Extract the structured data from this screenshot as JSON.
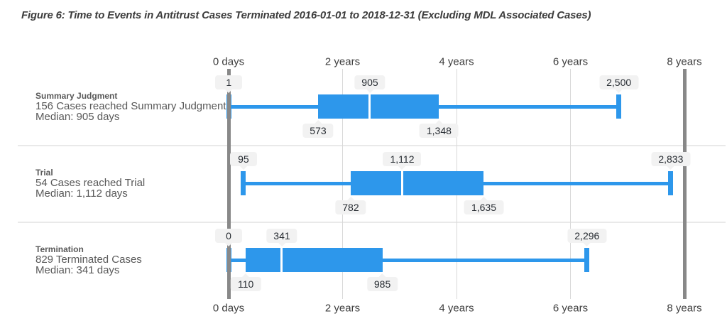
{
  "title": "Figure 6: Time to Events in Antitrust Cases Terminated 2016-01-01 to 2018-12-31 (Excluding MDL Associated Cases)",
  "colors": {
    "box": "#2d97eb",
    "axis_major": "#888888",
    "gridline": "#d9d9d9",
    "separator": "#e9e9e9",
    "callout_bg": "#f2f2f2",
    "callout_text": "#262b31",
    "label_text": "#595959",
    "axis_text": "#3d3d3d",
    "title_text": "#3d3d3d"
  },
  "chart_data": {
    "type": "boxplot",
    "orientation": "horizontal",
    "unit": "days",
    "x_axis": {
      "range_days": [
        0,
        2920
      ],
      "ticks": [
        {
          "label": "0 days",
          "days": 0,
          "major": true
        },
        {
          "label": "2 years",
          "days": 730,
          "major": false
        },
        {
          "label": "4 years",
          "days": 1460,
          "major": false
        },
        {
          "label": "6 years",
          "days": 2190,
          "major": false
        },
        {
          "label": "8 years",
          "days": 2920,
          "major": true
        }
      ],
      "shown_on_top": true,
      "shown_on_bottom": true
    },
    "series": [
      {
        "name": "Summary Judgment",
        "cases_label": "156 Cases reached Summary Judgment",
        "median_label": "Median: 905 days",
        "min": 1,
        "q1": 573,
        "median": 905,
        "q3": 1348,
        "max": 2500,
        "display": {
          "min": "1",
          "q1": "573",
          "median": "905",
          "q3": "1,348",
          "max": "2,500"
        }
      },
      {
        "name": "Trial",
        "cases_label": "54 Cases reached Trial",
        "median_label": "Median: 1,112 days",
        "min": 95,
        "q1": 782,
        "median": 1112,
        "q3": 1635,
        "max": 2833,
        "display": {
          "min": "95",
          "q1": "782",
          "median": "1,112",
          "q3": "1,635",
          "max": "2,833"
        }
      },
      {
        "name": "Termination",
        "cases_label": "829 Terminated Cases",
        "median_label": "Median: 341 days",
        "min": 0,
        "q1": 110,
        "median": 341,
        "q3": 985,
        "max": 2296,
        "display": {
          "min": "0",
          "q1": "110",
          "median": "341",
          "q3": "985",
          "max": "2,296"
        }
      }
    ]
  }
}
